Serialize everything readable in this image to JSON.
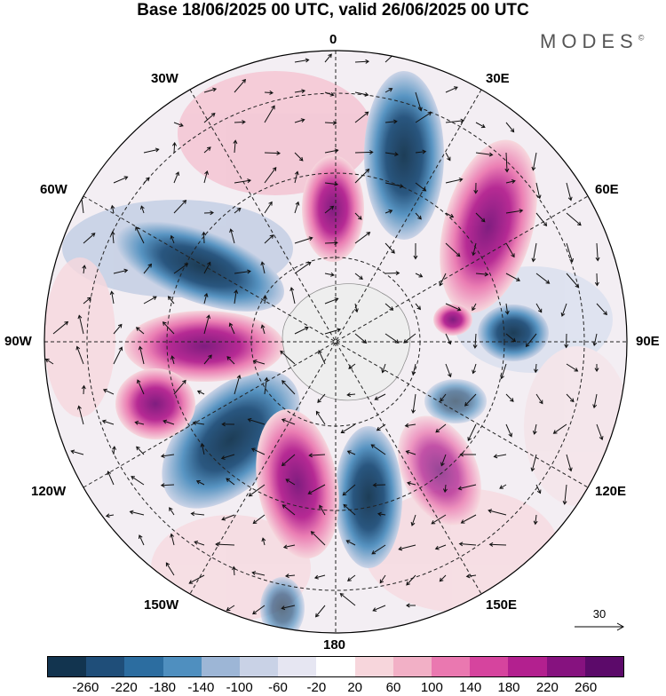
{
  "header": {
    "title": "Base 18/06/2025 00 UTC, valid 26/06/2025 00 UTC",
    "brand": "MODES"
  },
  "map": {
    "projection": "south-polar-stereographic",
    "longitude_labels": {
      "top": "0",
      "top_right": "30E",
      "right_upper": "60E",
      "right": "90E",
      "right_lower": "120E",
      "bottom_right": "150E",
      "bottom": "180",
      "bottom_left": "150W",
      "left_lower": "120W",
      "left": "90W",
      "left_upper": "60W",
      "top_left": "30W"
    },
    "anomaly_cells": [
      {
        "type": "negative",
        "intensity": -240,
        "color": "#1f4e79"
      },
      {
        "type": "positive",
        "intensity": 240,
        "color": "#8b1a8b"
      },
      {
        "type": "negative",
        "intensity": -200,
        "color": "#2a6a9a"
      },
      {
        "type": "positive",
        "intensity": 220,
        "color": "#a3238f"
      },
      {
        "type": "negative",
        "intensity": -220,
        "color": "#1f4e79"
      },
      {
        "type": "positive",
        "intensity": 200,
        "color": "#b8289a"
      },
      {
        "type": "negative",
        "intensity": -180,
        "color": "#2a6a9a"
      },
      {
        "type": "positive",
        "intensity": 260,
        "color": "#7a127a"
      }
    ],
    "reference_vector": "30"
  },
  "colorbar": {
    "colors": [
      "#12344f",
      "#1f4e79",
      "#2c6da0",
      "#4f8fbf",
      "#9db6d6",
      "#c9d2e6",
      "#e6e6f2",
      "#ffffff",
      "#f7d6dc",
      "#f2b0c6",
      "#ea78b0",
      "#d6449e",
      "#b3208f",
      "#86127f",
      "#5c0a6a"
    ],
    "tick_labels": [
      "-260",
      "-220",
      "-180",
      "-140",
      "-100",
      "-60",
      "-20",
      "20",
      "60",
      "100",
      "140",
      "180",
      "220",
      "260"
    ]
  }
}
